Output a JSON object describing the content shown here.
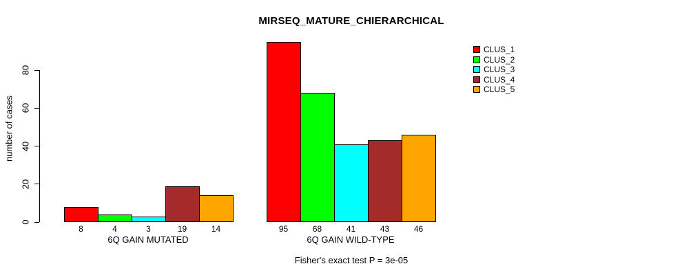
{
  "chart_data": {
    "type": "bar",
    "title": "MIRSEQ_MATURE_CHIERARCHICAL",
    "ylabel": "number of cases",
    "xlabel": "",
    "annotation": "Fisher's exact test P = 3e-05",
    "yticks": [
      0,
      20,
      40,
      60,
      80
    ],
    "ylim": [
      0,
      96
    ],
    "grid": false,
    "legend_position": "right",
    "categories": [
      "6Q GAIN MUTATED",
      "6Q GAIN WILD-TYPE"
    ],
    "groups": [
      {
        "label": "6Q GAIN MUTATED",
        "values": [
          8,
          4,
          3,
          19,
          14
        ]
      },
      {
        "label": "6Q GAIN WILD-TYPE",
        "values": [
          95,
          68,
          41,
          43,
          46
        ]
      }
    ],
    "series": [
      {
        "name": "CLUS_1",
        "color": "#FF0000"
      },
      {
        "name": "CLUS_2",
        "color": "#00FF00"
      },
      {
        "name": "CLUS_3",
        "color": "#00FFFF"
      },
      {
        "name": "CLUS_4",
        "color": "#A52A2A"
      },
      {
        "name": "CLUS_5",
        "color": "#FFA500"
      }
    ]
  }
}
